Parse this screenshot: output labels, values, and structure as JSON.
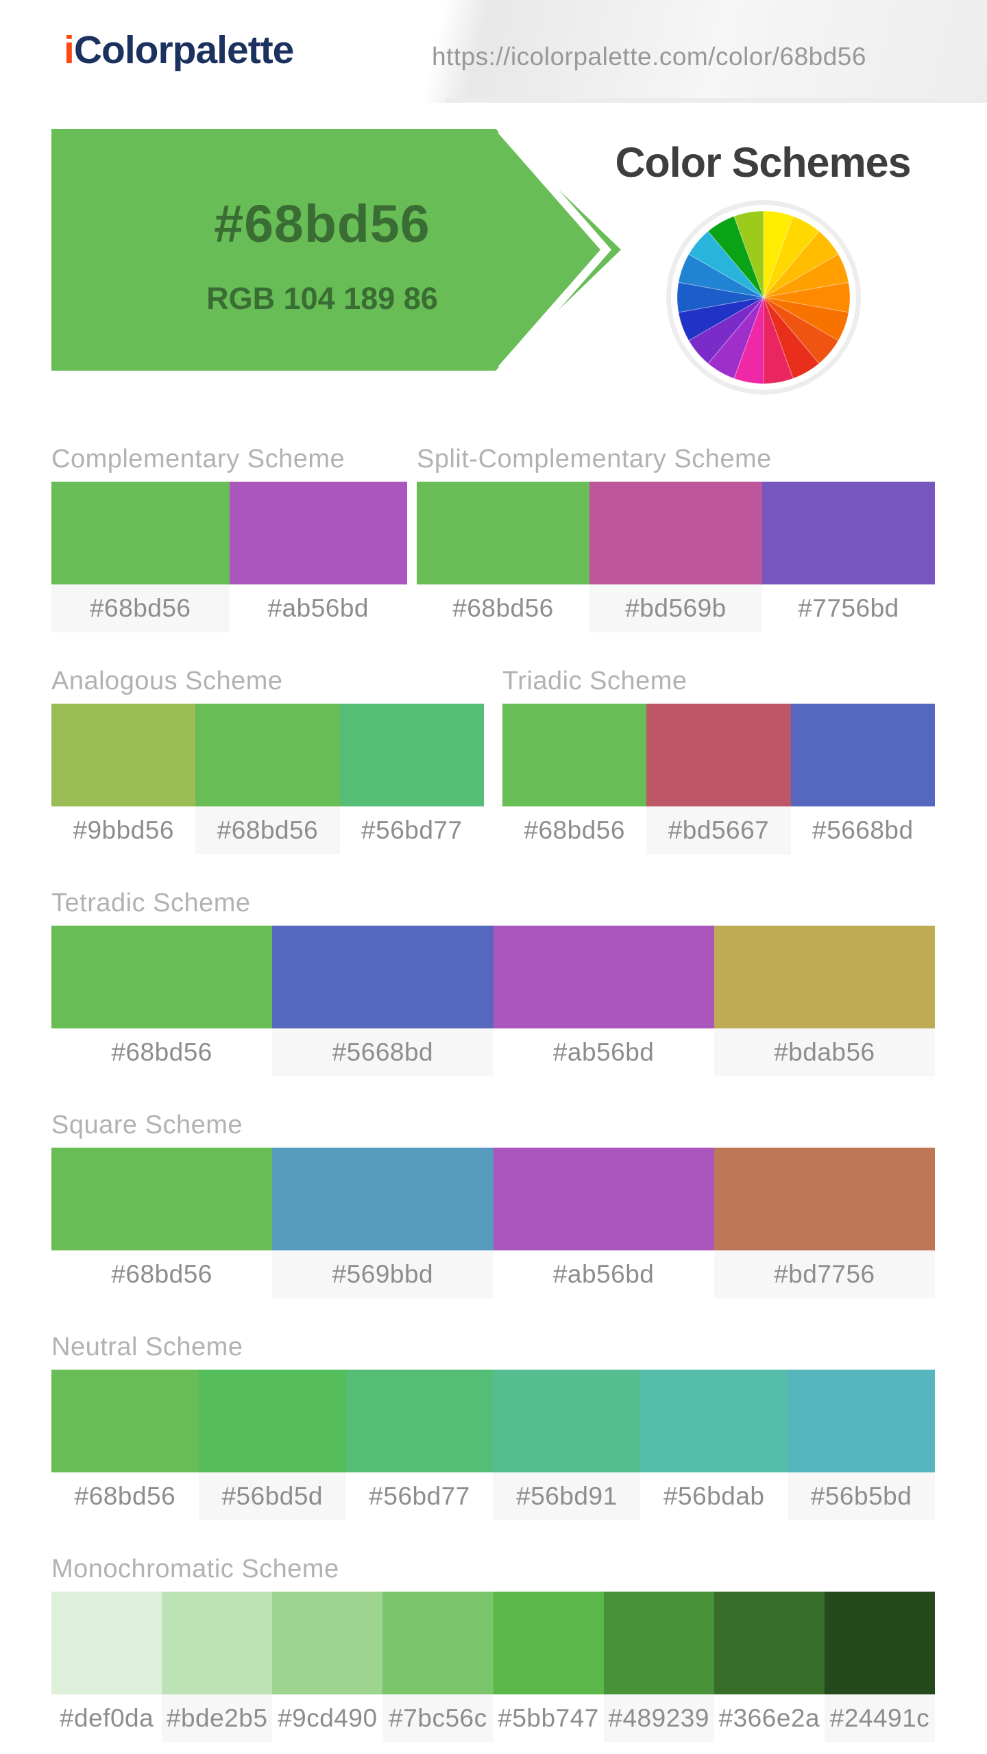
{
  "header": {
    "logo_prefix": "i",
    "logo_rest": "Colorpalette",
    "logo_prefix_color": "#ff4713",
    "logo_rest_color": "#1b3160",
    "url": "https://icolorpalette.com/color/68bd56"
  },
  "banner": {
    "hex": "#68bd56",
    "rgb": "RGB 104 189 86",
    "fill_color": "#68bd56",
    "text_color": "#3a6d33"
  },
  "schemes_title": "Color Schemes",
  "wheel_colors": [
    "#ffec00",
    "#ffd800",
    "#ffbc00",
    "#ffa000",
    "#ff8a00",
    "#f87200",
    "#ef5410",
    "#e92e1c",
    "#e9265f",
    "#ef28a6",
    "#a02ecb",
    "#7b2bc8",
    "#2133c6",
    "#1b5ec9",
    "#2183d4",
    "#29b4dc",
    "#0aa315",
    "#9ccb1c"
  ],
  "schemes": {
    "complementary": {
      "title": "Complementary Scheme",
      "colors": [
        "#68bd56",
        "#ab56bd"
      ]
    },
    "split": {
      "title": "Split-Complementary Scheme",
      "colors": [
        "#68bd56",
        "#bd569b",
        "#7756bd"
      ]
    },
    "analogous": {
      "title": "Analogous Scheme",
      "colors": [
        "#9bbd56",
        "#68bd56",
        "#56bd77"
      ]
    },
    "triadic": {
      "title": "Triadic Scheme",
      "colors": [
        "#68bd56",
        "#bd5667",
        "#5668bd"
      ]
    },
    "tetradic": {
      "title": "Tetradic Scheme",
      "colors": [
        "#68bd56",
        "#5668bd",
        "#ab56bd",
        "#bdab56"
      ]
    },
    "square": {
      "title": "Square Scheme",
      "colors": [
        "#68bd56",
        "#569bbd",
        "#ab56bd",
        "#bd7756"
      ]
    },
    "neutral": {
      "title": "Neutral Scheme",
      "colors": [
        "#68bd56",
        "#56bd5d",
        "#56bd77",
        "#56bd91",
        "#56bdab",
        "#56b5bd"
      ]
    },
    "monochromatic": {
      "title": "Monochromatic Scheme",
      "colors": [
        "#def0da",
        "#bde2b5",
        "#9cd490",
        "#7bc56c",
        "#5bb747",
        "#489239",
        "#366e2a",
        "#24491c"
      ]
    }
  }
}
